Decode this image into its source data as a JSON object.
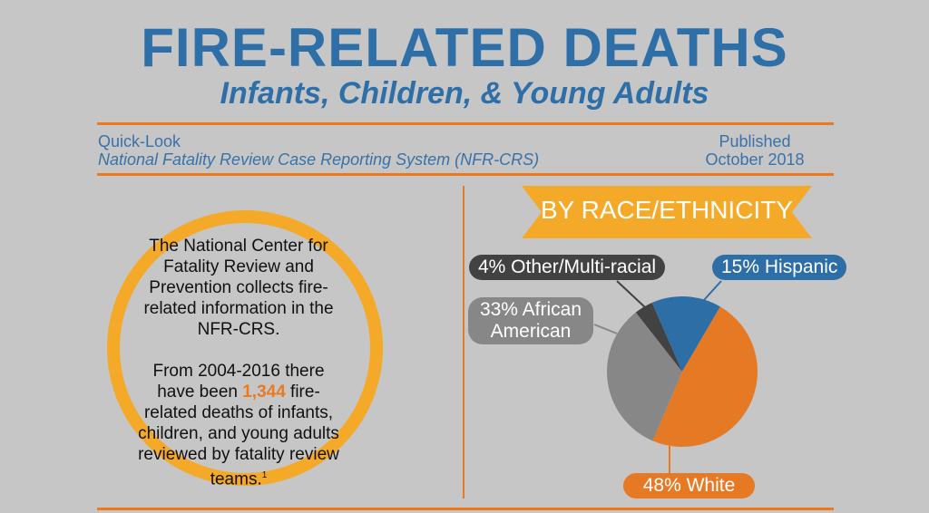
{
  "header": {
    "title": "FIRE-RELATED DEATHS",
    "subtitle": "Infants, Children, & Young Adults"
  },
  "info": {
    "quicklook": "Quick-Look",
    "system": "National Fatality Review Case Reporting System (NFR-CRS)",
    "published": "Published",
    "date": "October 2018"
  },
  "blurb": {
    "p1": "The National Center for Fatality Review and Prevention collects fire-related information in the NFR-CRS.",
    "p2_a": "From 2004-2016 there have been ",
    "highlight": "1,344",
    "p2_b": " fire-related deaths of infants, children, and young adults reviewed by fatality review teams.",
    "footnote": "1"
  },
  "colors": {
    "accent": "#e87a24",
    "banner": "#f5a928",
    "title": "#2f6fa8"
  },
  "chart_data": {
    "type": "pie",
    "title": "BY RACE/ETHNICITY",
    "slices": [
      {
        "name": "Hispanic",
        "value": 15,
        "label": "15% Hispanic",
        "color": "#2e6ea6"
      },
      {
        "name": "White",
        "value": 48,
        "label": "48% White",
        "color": "#e67a24"
      },
      {
        "name": "African American",
        "value": 33,
        "label": "33% African American",
        "color": "#878787"
      },
      {
        "name": "Other/Multi-racial",
        "value": 4,
        "label": "4% Other/Multi-racial",
        "color": "#424242"
      }
    ]
  }
}
